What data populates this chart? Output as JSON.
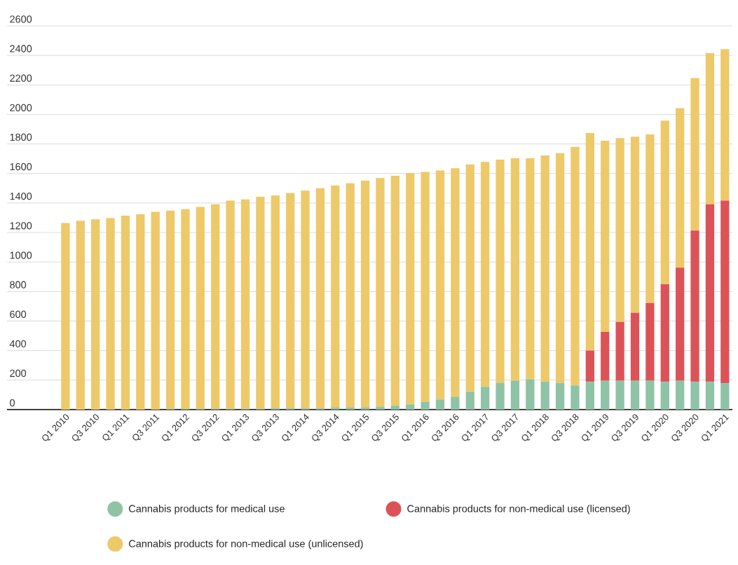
{
  "chart_data": {
    "type": "bar",
    "stacked": true,
    "grid": "y",
    "legend": "bottom",
    "categories": [
      "Q1 2010",
      null,
      "Q3 2010",
      null,
      "Q1 2011",
      null,
      "Q3 2011",
      null,
      "Q1 2012",
      null,
      "Q3 2012",
      null,
      "Q1 2013",
      null,
      "Q3 2013",
      null,
      "Q1 2014",
      null,
      "Q3 2014",
      null,
      "Q1 2015",
      null,
      "Q3 2015",
      null,
      "Q1 2016",
      null,
      "Q3 2016",
      null,
      "Q1 2017",
      null,
      "Q3 2017",
      null,
      "Q1 2018",
      null,
      "Q3 2018",
      null,
      "Q1 2019",
      null,
      "Q3 2019",
      null,
      "Q1 2020",
      null,
      "Q3 2020",
      null,
      "Q1 2021"
    ],
    "series": [
      {
        "name": "Cannabis products for medical use",
        "color": "#8fc3a6",
        "values": [
          0,
          0,
          0,
          0,
          0,
          0,
          0,
          5,
          5,
          5,
          5,
          5,
          5,
          5,
          9,
          9,
          9,
          9,
          14,
          14,
          14,
          18,
          27,
          36,
          53,
          69,
          87,
          120,
          155,
          180,
          196,
          205,
          189,
          180,
          164,
          189,
          196,
          196,
          196,
          196,
          189,
          196,
          189,
          189,
          180
        ]
      },
      {
        "name": "Cannabis products for non-medical use (licensed)",
        "color": "#dc5357",
        "values": [
          0,
          0,
          0,
          0,
          0,
          0,
          0,
          0,
          0,
          0,
          0,
          0,
          0,
          0,
          0,
          0,
          0,
          0,
          0,
          0,
          0,
          0,
          0,
          0,
          0,
          0,
          0,
          0,
          0,
          0,
          0,
          0,
          0,
          0,
          0,
          211,
          331,
          398,
          460,
          526,
          660,
          766,
          1025,
          1202,
          1236
        ]
      },
      {
        "name": "Cannabis products for non-medical use (unlicensed)",
        "color": "#edc96a",
        "values": [
          1264,
          1280,
          1289,
          1298,
          1314,
          1324,
          1340,
          1344,
          1353,
          1369,
          1386,
          1411,
          1420,
          1437,
          1442,
          1458,
          1475,
          1491,
          1504,
          1520,
          1537,
          1551,
          1558,
          1566,
          1558,
          1551,
          1549,
          1542,
          1523,
          1514,
          1507,
          1498,
          1533,
          1558,
          1616,
          1474,
          1295,
          1246,
          1193,
          1143,
          1109,
          1081,
          1033,
          1025,
          1026
        ]
      }
    ],
    "ylim": [
      0,
      2600
    ],
    "yticks": [
      0,
      200,
      400,
      600,
      800,
      1000,
      1200,
      1400,
      1600,
      1800,
      2000,
      2200,
      2400,
      2600
    ]
  }
}
